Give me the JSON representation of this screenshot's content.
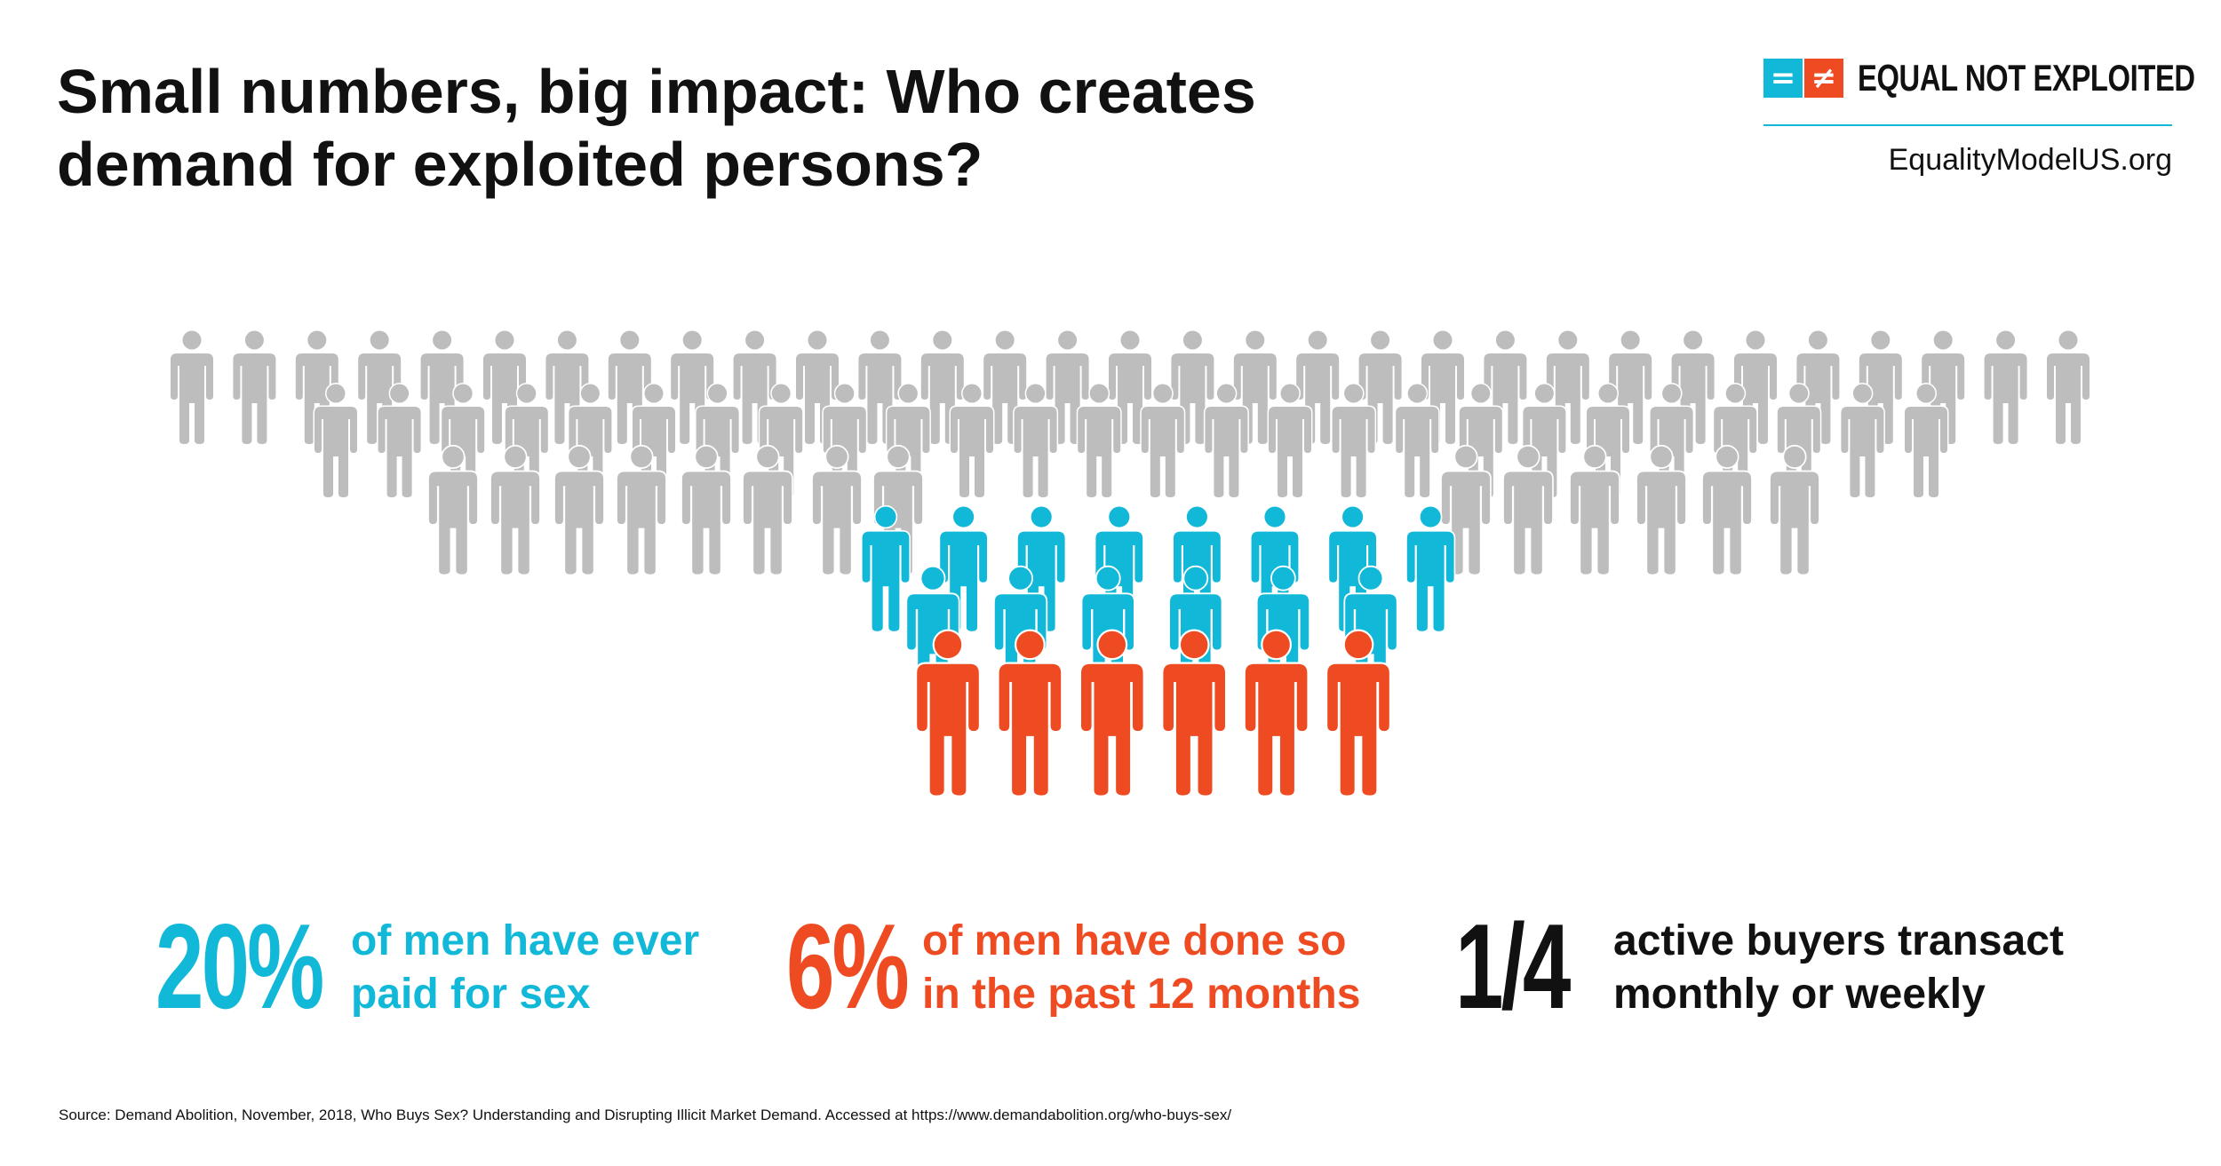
{
  "title": {
    "line1": "Small numbers, big impact: Who creates",
    "line2": "demand for exploited persons?"
  },
  "brand": {
    "logo_left": "=",
    "logo_right": "≠",
    "name": "EQUAL NOT EXPLOITED",
    "url": "EqualityModelUS.org"
  },
  "colors": {
    "cyan": "#12b8d8",
    "orange": "#ef4b22",
    "gray": "#bdbdbd",
    "text": "#111111"
  },
  "icons": {
    "figure": "person-icon",
    "logo": "equal-not-equal-icon"
  },
  "crowd": {
    "groups": [
      {
        "name": "all-men",
        "color": "gray"
      },
      {
        "name": "ever-paid-for-sex",
        "color": "cyan"
      },
      {
        "name": "paid-past-12-months",
        "color": "orange"
      }
    ]
  },
  "stats": [
    {
      "number": "20%",
      "line1": "of men have ever",
      "line2": "paid for sex",
      "color": "#12b8d8"
    },
    {
      "number": "6%",
      "line1": "of men have done so",
      "line2": "in the past 12 months",
      "color": "#ef4b22"
    },
    {
      "number": "1/4",
      "line1": "active buyers transact",
      "line2": "monthly or weekly",
      "color": "#111111"
    }
  ],
  "source": "Source: Demand Abolition, November, 2018, Who Buys Sex? Understanding and Disrupting Illicit Market Demand.  Accessed at https://www.demandabolition.org/who-buys-sex/"
}
